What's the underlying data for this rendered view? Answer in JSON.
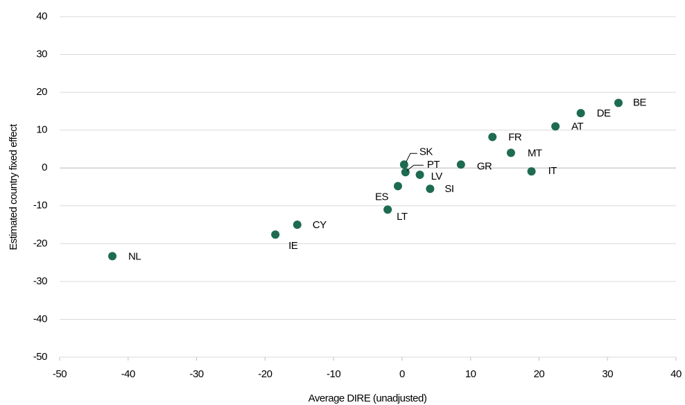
{
  "chart_data": {
    "type": "scatter",
    "x_label": "Average DIRE (unadjusted)",
    "y_label": "Estimated country fixed effect",
    "labels": [
      "NL",
      "IE",
      "CY",
      "LT",
      "ES",
      "SK",
      "PT",
      "LV",
      "SI",
      "GR",
      "FR",
      "MT",
      "IT",
      "AT",
      "DE",
      "BE"
    ],
    "x": [
      -42.3,
      -18.5,
      -15.3,
      -2.1,
      -0.6,
      0.3,
      0.5,
      2.6,
      4.1,
      8.6,
      13.2,
      15.9,
      18.9,
      22.4,
      26.1,
      31.6
    ],
    "values": [
      -23.3,
      -17.6,
      -15.0,
      -11.0,
      -4.8,
      0.9,
      -1.1,
      -1.8,
      -5.5,
      0.9,
      8.2,
      4.0,
      -0.9,
      11.0,
      14.5,
      17.2
    ],
    "color": "#1e6b52",
    "xlim": [
      -50,
      40
    ],
    "xticks": [
      -50,
      -40,
      -30,
      -20,
      -10,
      0,
      10,
      20,
      30,
      40
    ],
    "ylim": [
      -50,
      40
    ],
    "yticks": [
      -50,
      -40,
      -30,
      -20,
      -10,
      0,
      10,
      20,
      30,
      40
    ],
    "grid": true
  }
}
